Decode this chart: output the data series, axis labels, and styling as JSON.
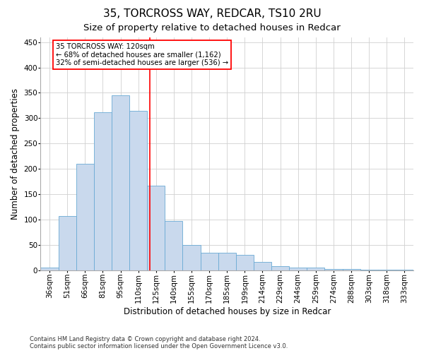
{
  "title1": "35, TORCROSS WAY, REDCAR, TS10 2RU",
  "title2": "Size of property relative to detached houses in Redcar",
  "xlabel": "Distribution of detached houses by size in Redcar",
  "ylabel": "Number of detached properties",
  "categories": [
    "36sqm",
    "51sqm",
    "66sqm",
    "81sqm",
    "95sqm",
    "110sqm",
    "125sqm",
    "140sqm",
    "155sqm",
    "170sqm",
    "185sqm",
    "199sqm",
    "214sqm",
    "229sqm",
    "244sqm",
    "259sqm",
    "274sqm",
    "288sqm",
    "303sqm",
    "318sqm",
    "333sqm"
  ],
  "values": [
    5,
    107,
    210,
    312,
    345,
    315,
    167,
    97,
    50,
    35,
    35,
    30,
    16,
    8,
    5,
    5,
    2,
    2,
    1,
    1,
    1
  ],
  "bar_color": "#c9d9ed",
  "bar_edge_color": "#6aaad4",
  "annotation_line1": "35 TORCROSS WAY: 120sqm",
  "annotation_line2": "← 68% of detached houses are smaller (1,162)",
  "annotation_line3": "32% of semi-detached houses are larger (536) →",
  "annotation_box_color": "white",
  "annotation_box_edge_color": "red",
  "marker_color": "red",
  "ylim": [
    0,
    460
  ],
  "yticks": [
    0,
    50,
    100,
    150,
    200,
    250,
    300,
    350,
    400,
    450
  ],
  "grid_color": "#d0d0d0",
  "footnote1": "Contains HM Land Registry data © Crown copyright and database right 2024.",
  "footnote2": "Contains public sector information licensed under the Open Government Licence v3.0.",
  "bg_color": "#ffffff",
  "title1_fontsize": 11,
  "title2_fontsize": 9.5,
  "tick_fontsize": 7.5,
  "label_fontsize": 8.5,
  "annot_fontsize": 7.2,
  "footnote_fontsize": 6.0
}
